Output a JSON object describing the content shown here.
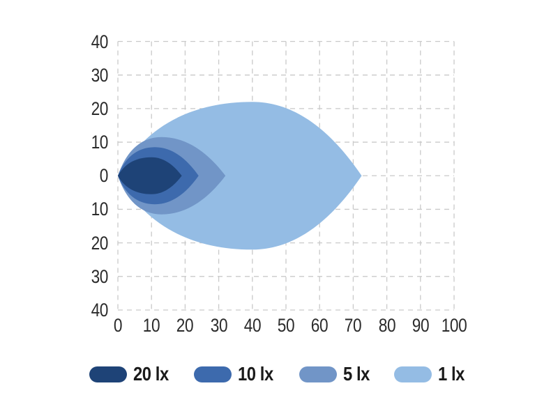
{
  "colors": {
    "background": "#ffffff",
    "grid": "#c9c9c9",
    "axis_text": "#2b2b2b",
    "legend_text": "#1a1a1a"
  },
  "chart_data": {
    "type": "area",
    "description": "Isolux beam pattern diagram with nested illuminance contours",
    "title": "",
    "xlabel": "",
    "ylabel": "",
    "x_range": [
      0,
      100
    ],
    "y_range": [
      -40,
      40
    ],
    "x_tick_values": [
      0,
      10,
      20,
      30,
      40,
      50,
      60,
      70,
      80,
      90,
      100
    ],
    "x_tick_labels": [
      "0",
      "10",
      "20",
      "30",
      "40",
      "50",
      "60",
      "70",
      "80",
      "90",
      "100"
    ],
    "y_tick_values": [
      40,
      30,
      20,
      10,
      0,
      -10,
      -20,
      -30,
      -40
    ],
    "y_tick_labels": [
      "40",
      "30",
      "20",
      "10",
      "0",
      "10",
      "20",
      "30",
      "40"
    ],
    "grid": {
      "show": true,
      "style": "dashed",
      "color": "#c9c9c9"
    },
    "legend_position": "bottom",
    "unit": "lx",
    "series": [
      {
        "name": "20 lx",
        "value_lx": 20,
        "color": "#1e4377",
        "contour": {
          "start_x": 0,
          "peak_x": 10,
          "end_x": 19,
          "half_height": 5.5
        }
      },
      {
        "name": "10 lx",
        "value_lx": 10,
        "color": "#3d6aad",
        "contour": {
          "start_x": 0,
          "peak_x": 11,
          "end_x": 24,
          "half_height": 8.5
        }
      },
      {
        "name": "5 lx",
        "value_lx": 5,
        "color": "#7195c7",
        "contour": {
          "start_x": 0,
          "peak_x": 13,
          "end_x": 32,
          "half_height": 11.5
        }
      },
      {
        "name": "1 lx",
        "value_lx": 1,
        "color": "#94bce4",
        "contour": {
          "start_x": 0,
          "peak_x": 40,
          "end_x": 72.5,
          "half_height": 22
        }
      }
    ]
  }
}
